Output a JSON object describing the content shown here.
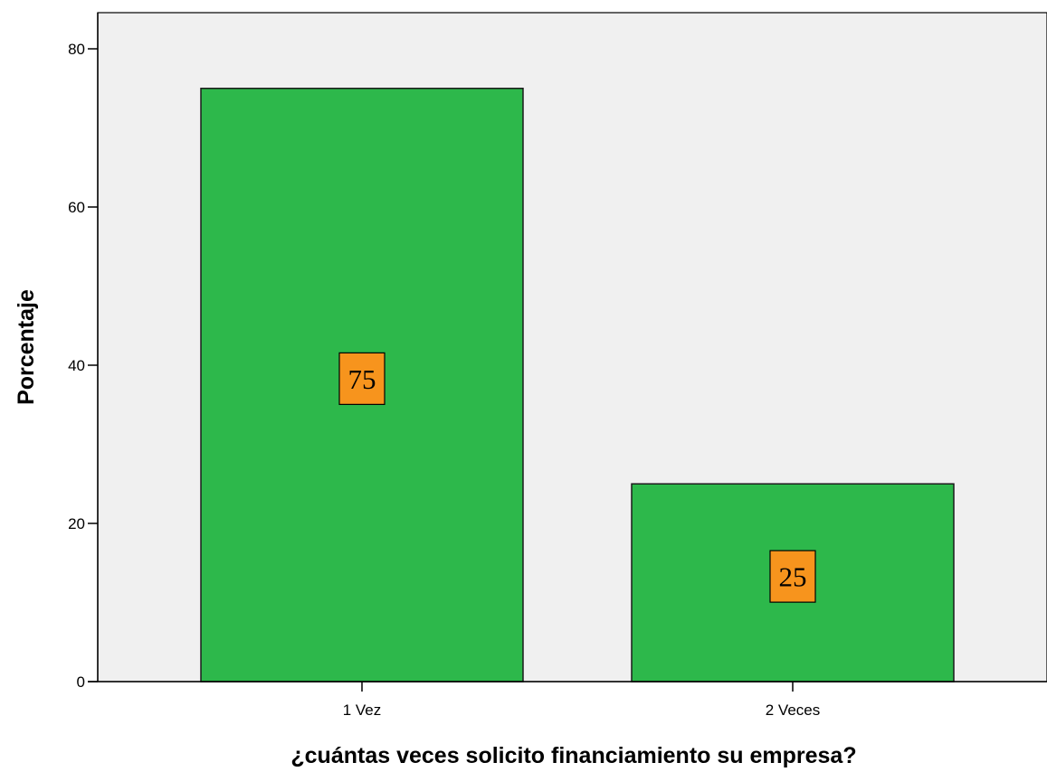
{
  "chart_data": {
    "type": "bar",
    "categories": [
      "1 Vez",
      "2 Veces"
    ],
    "values": [
      75,
      25
    ],
    "data_labels": [
      "75",
      "25"
    ],
    "title": "",
    "xlabel": "¿cuántas veces solicito financiamiento su empresa?",
    "ylabel": "Porcentaje",
    "ylim": [
      0,
      80
    ],
    "yticks": [
      0,
      20,
      40,
      60,
      80
    ],
    "grid": false,
    "legend": "none",
    "colors": {
      "plot_background": "#f0f0f0",
      "bar_fill": "#2db84b",
      "bar_stroke": "#1a1a1a",
      "label_box_fill": "#f7941d",
      "axis": "#000000"
    }
  }
}
